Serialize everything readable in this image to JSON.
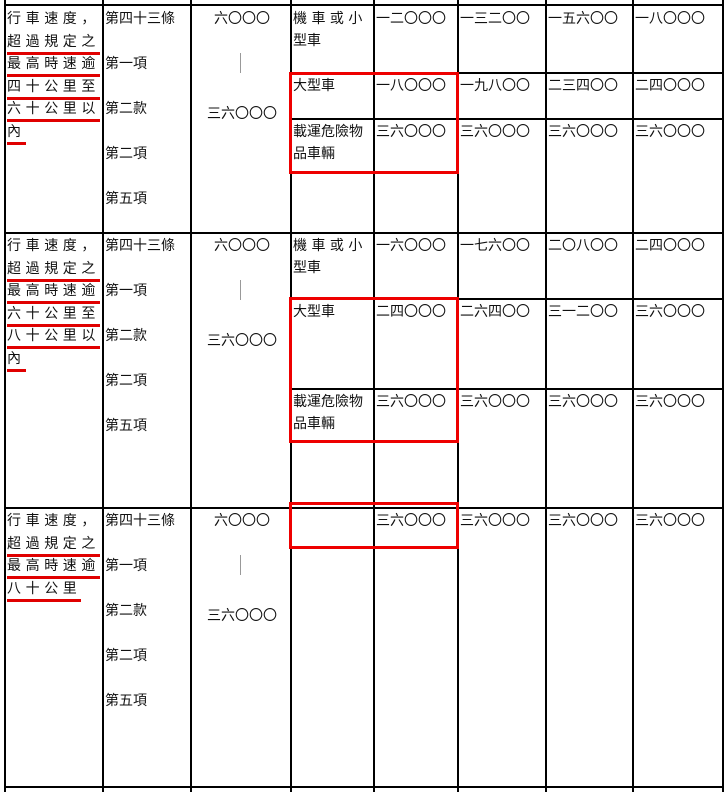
{
  "accent_color": "#ee0000",
  "rows": [
    {
      "desc_lines": [
        "行車速度，",
        "超過規定之",
        "最高時速逾",
        "四十公里至",
        "六十公里以",
        "內"
      ],
      "article_lines": [
        "第四十三條",
        "第一項",
        "第二款",
        "第二項",
        "第五項"
      ],
      "range": {
        "min": "六〇〇〇",
        "sep": "|",
        "max": "三六〇〇〇"
      },
      "vehicles": [
        {
          "type_lines": [
            "機 車 或 小",
            "型車"
          ],
          "fines": [
            "一二〇〇〇",
            "一三二〇〇",
            "一五六〇〇",
            "一八〇〇〇"
          ]
        },
        {
          "type_lines": [
            "大型車"
          ],
          "fines": [
            "一八〇〇〇",
            "一九八〇〇",
            "二三四〇〇",
            "二四〇〇〇"
          ]
        },
        {
          "type_lines": [
            "載運危險物",
            "品車輛"
          ],
          "fines": [
            "三六〇〇〇",
            "三六〇〇〇",
            "三六〇〇〇",
            "三六〇〇〇"
          ]
        }
      ]
    },
    {
      "desc_lines": [
        "行車速度，",
        "超過規定之",
        "最高時速逾",
        "六十公里至",
        "八十公里以",
        "內"
      ],
      "article_lines": [
        "第四十三條",
        "第一項",
        "第二款",
        "第二項",
        "第五項"
      ],
      "range": {
        "min": "六〇〇〇",
        "sep": "|",
        "max": "三六〇〇〇"
      },
      "vehicles": [
        {
          "type_lines": [
            "機 車 或 小",
            "型車"
          ],
          "fines": [
            "一六〇〇〇",
            "一七六〇〇",
            "二〇八〇〇",
            "二四〇〇〇"
          ]
        },
        {
          "type_lines": [
            "大型車"
          ],
          "fines": [
            "二四〇〇〇",
            "二六四〇〇",
            "三一二〇〇",
            "三六〇〇〇"
          ]
        },
        {
          "type_lines": [
            "載運危險物",
            "品車輛"
          ],
          "fines": [
            "三六〇〇〇",
            "三六〇〇〇",
            "三六〇〇〇",
            "三六〇〇〇"
          ]
        }
      ]
    },
    {
      "desc_lines": [
        "行車速度，",
        "超過規定之",
        "最高時速逾",
        "八十公里"
      ],
      "article_lines": [
        "第四十三條",
        "第一項",
        "第二款",
        "第二項",
        "第五項"
      ],
      "range": {
        "min": "六〇〇〇",
        "sep": "|",
        "max": "三六〇〇〇"
      },
      "vehicles": [
        {
          "type_lines": [],
          "fines": [
            "三六〇〇〇",
            "三六〇〇〇",
            "三六〇〇〇",
            "三六〇〇〇"
          ]
        }
      ]
    }
  ]
}
